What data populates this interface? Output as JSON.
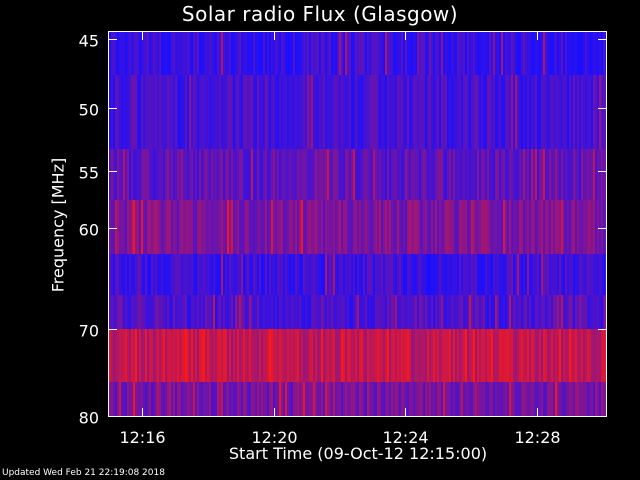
{
  "chart_data": {
    "type": "heatmap",
    "title": "Solar radio Flux (Glasgow)",
    "xlabel": "Start Time (09-Oct-12 12:15:00)",
    "ylabel": "Frequency [MHz]",
    "x_ticks": [
      "12:16",
      "12:20",
      "12:24",
      "12:28"
    ],
    "x_tick_minutes": [
      16,
      20,
      24,
      28
    ],
    "xlim_minutes": [
      15.0,
      30.1
    ],
    "y_ticks": [
      45,
      50,
      55,
      60,
      70,
      80
    ],
    "y_scale": "log",
    "ylim": [
      44.5,
      80
    ],
    "colormap": [
      "#1a10ff",
      "#ff1a10"
    ],
    "bands": [
      {
        "from": 44.5,
        "to": 47.5,
        "intensity": 0.12
      },
      {
        "from": 47.5,
        "to": 53.2,
        "intensity": 0.18
      },
      {
        "from": 53.2,
        "to": 57.5,
        "intensity": 0.28
      },
      {
        "from": 57.5,
        "to": 62.5,
        "intensity": 0.42
      },
      {
        "from": 62.5,
        "to": 66.5,
        "intensity": 0.15
      },
      {
        "from": 66.5,
        "to": 70.0,
        "intensity": 0.22
      },
      {
        "from": 70.0,
        "to": 76.0,
        "intensity": 0.72
      },
      {
        "from": 76.0,
        "to": 80.0,
        "intensity": 0.38
      }
    ]
  },
  "footer": "Updated Wed Feb 21 22:19:08 2018"
}
